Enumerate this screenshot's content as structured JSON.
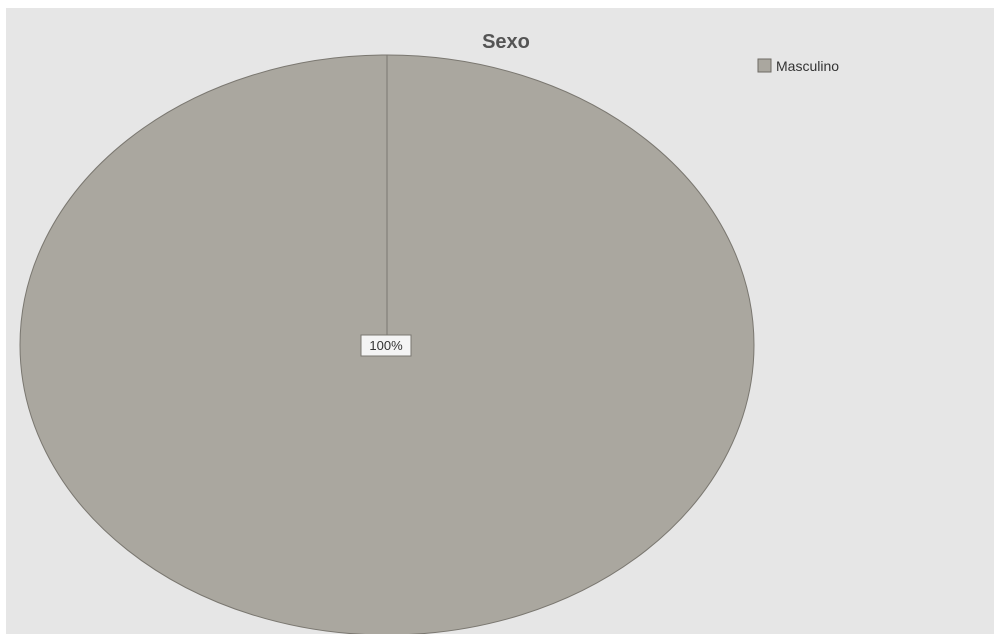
{
  "chart_data": {
    "type": "pie",
    "title": "Sexo",
    "categories": [
      "Masculino"
    ],
    "values": [
      100
    ],
    "data_labels": [
      "100%"
    ],
    "legend": {
      "position": "top-right",
      "entries": [
        "Masculino"
      ]
    },
    "colors": {
      "slice": "#aaa79f",
      "slice_stroke": "#7a7770",
      "background": "#e6e6e6"
    }
  }
}
